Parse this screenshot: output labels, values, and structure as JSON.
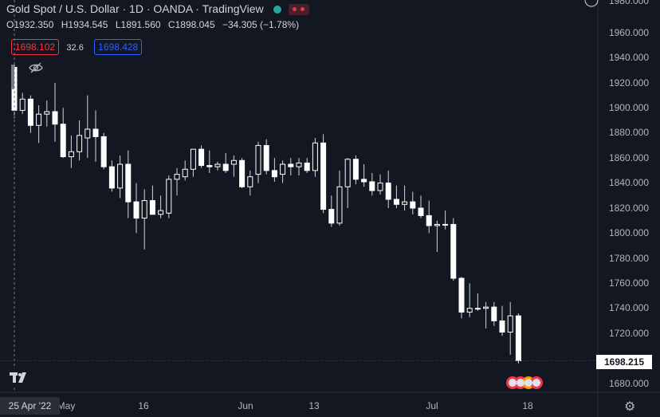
{
  "header": {
    "title": "Gold Spot / U.S. Dollar · 1D · OANDA · TradingView"
  },
  "ohlc": {
    "o_label": "O",
    "o": "1932.350",
    "h_label": "H",
    "h": "1934.545",
    "l_label": "L",
    "l": "1891.560",
    "c_label": "C",
    "c": "1898.045",
    "change": "−34.305 (−1.78%)"
  },
  "trade": {
    "sell": "1698.102",
    "spread": "32.6",
    "buy": "1698.428"
  },
  "axis": {
    "y_ticks": [
      "1960.000",
      "1940.000",
      "1920.000",
      "1900.000",
      "1880.000",
      "1860.000",
      "1840.000",
      "1820.000",
      "1800.000",
      "1780.000",
      "1760.000",
      "1740.000",
      "1720.000",
      "1700.000",
      "1680.000"
    ],
    "y_top_partial": "1980.000",
    "x_ticks": [
      "May",
      "16",
      "Jun",
      "13",
      "Jul",
      "18"
    ],
    "current_date": "25 Apr '22",
    "last_price": "1698.215"
  },
  "colors": {
    "background": "#131722",
    "candle": "#ffffff",
    "wick": "#d1d4dc",
    "sell": "#f23645",
    "buy": "#2962ff"
  },
  "chart_data": {
    "type": "candlestick",
    "title": "Gold Spot / U.S. Dollar",
    "interval": "1D",
    "ylim": [
      1676,
      1990
    ],
    "candles": [
      [
        1932.35,
        1934.55,
        1891.56,
        1898.05
      ],
      [
        1898,
        1912,
        1895,
        1907
      ],
      [
        1907,
        1910,
        1880,
        1886
      ],
      [
        1886,
        1902,
        1872,
        1895
      ],
      [
        1895,
        1906,
        1885,
        1897
      ],
      [
        1897,
        1920,
        1873,
        1887
      ],
      [
        1887,
        1900,
        1860,
        1861
      ],
      [
        1861,
        1878,
        1852,
        1865
      ],
      [
        1865,
        1890,
        1858,
        1878
      ],
      [
        1876,
        1910,
        1860,
        1883
      ],
      [
        1883,
        1898,
        1857,
        1877
      ],
      [
        1877,
        1880,
        1851,
        1853
      ],
      [
        1853,
        1858,
        1833,
        1836
      ],
      [
        1836,
        1862,
        1828,
        1855
      ],
      [
        1855,
        1866,
        1812,
        1825
      ],
      [
        1825,
        1840,
        1800,
        1812
      ],
      [
        1812,
        1835,
        1787,
        1826
      ],
      [
        1826,
        1838,
        1815,
        1815
      ],
      [
        1815,
        1830,
        1812,
        1818
      ],
      [
        1816,
        1846,
        1812,
        1843
      ],
      [
        1843,
        1852,
        1830,
        1847
      ],
      [
        1845,
        1858,
        1842,
        1851
      ],
      [
        1851,
        1866,
        1845,
        1867
      ],
      [
        1867,
        1870,
        1852,
        1854
      ],
      [
        1854,
        1866,
        1848,
        1853
      ],
      [
        1853,
        1857,
        1850,
        1855
      ],
      [
        1855,
        1864,
        1848,
        1850
      ],
      [
        1855,
        1862,
        1845,
        1858
      ],
      [
        1858,
        1860,
        1836,
        1837
      ],
      [
        1837,
        1850,
        1830,
        1845
      ],
      [
        1847,
        1873,
        1840,
        1870
      ],
      [
        1870,
        1875,
        1847,
        1850
      ],
      [
        1850,
        1860,
        1841,
        1845
      ],
      [
        1847,
        1858,
        1840,
        1855
      ],
      [
        1855,
        1860,
        1846,
        1853
      ],
      [
        1853,
        1860,
        1846,
        1856
      ],
      [
        1856,
        1860,
        1848,
        1850
      ],
      [
        1850,
        1876,
        1845,
        1872
      ],
      [
        1872,
        1879,
        1816,
        1819
      ],
      [
        1819,
        1830,
        1805,
        1808
      ],
      [
        1808,
        1850,
        1806,
        1837
      ],
      [
        1837,
        1860,
        1820,
        1859
      ],
      [
        1859,
        1862,
        1839,
        1843
      ],
      [
        1843,
        1855,
        1837,
        1841
      ],
      [
        1841,
        1848,
        1830,
        1834
      ],
      [
        1834,
        1847,
        1831,
        1840
      ],
      [
        1840,
        1850,
        1820,
        1827
      ],
      [
        1827,
        1838,
        1820,
        1823
      ],
      [
        1823,
        1838,
        1818,
        1825
      ],
      [
        1825,
        1833,
        1815,
        1820
      ],
      [
        1820,
        1830,
        1812,
        1814
      ],
      [
        1814,
        1826,
        1800,
        1806
      ],
      [
        1806,
        1810,
        1785,
        1807
      ],
      [
        1807,
        1818,
        1803,
        1807
      ],
      [
        1807,
        1812,
        1762,
        1764
      ],
      [
        1764,
        1765,
        1732,
        1737
      ],
      [
        1737,
        1760,
        1733,
        1740
      ],
      [
        1740,
        1752,
        1738,
        1740
      ],
      [
        1740,
        1745,
        1724,
        1741
      ],
      [
        1741,
        1745,
        1726,
        1730
      ],
      [
        1730,
        1742,
        1718,
        1721
      ],
      [
        1721,
        1745,
        1703,
        1734
      ],
      [
        1734,
        1736,
        1696,
        1698.2
      ]
    ],
    "x_tick_labels": [
      {
        "i": 0,
        "label": "25 Apr '22"
      },
      {
        "i": 5,
        "label": "May"
      },
      {
        "i": 16,
        "label": "16"
      },
      {
        "i": 31,
        "label": "Jun"
      },
      {
        "i": 39,
        "label": "13"
      },
      {
        "i": 54,
        "label": "Jul"
      },
      {
        "i": 63,
        "label": "18"
      }
    ],
    "crosshair_index": 0,
    "last_price": 1698.215
  }
}
